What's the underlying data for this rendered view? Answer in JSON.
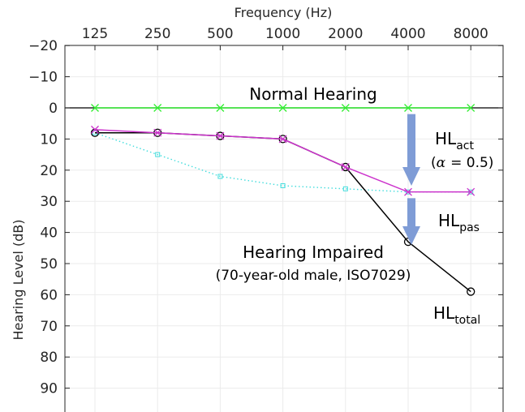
{
  "chart_data": {
    "type": "line",
    "xlabel": "Frequency (Hz)",
    "ylabel": "Hearing Level (dB)",
    "categories": [
      "125",
      "250",
      "500",
      "1000",
      "2000",
      "4000",
      "8000"
    ],
    "yticks": [
      "−20",
      "−10",
      "0",
      "10",
      "20",
      "30",
      "40",
      "50",
      "60",
      "70",
      "80",
      "90"
    ],
    "ytick_values": [
      -20,
      -10,
      0,
      10,
      20,
      30,
      40,
      50,
      60,
      70,
      80,
      90
    ],
    "ylim": [
      -20,
      96
    ],
    "y_reversed": true,
    "x_axis_position": "top",
    "series": [
      {
        "name": "Normal Hearing",
        "color": "#33ee33",
        "marker": "x",
        "style": "solid",
        "values": [
          0,
          0,
          0,
          0,
          0,
          0,
          0
        ]
      },
      {
        "name": "HL_pas",
        "color": "#44dddd",
        "marker": "square",
        "style": "dotted",
        "values": [
          8,
          15,
          22,
          25,
          26,
          27,
          27
        ]
      },
      {
        "name": "HL_total",
        "color": "#000000",
        "marker": "circle",
        "style": "solid",
        "values": [
          8,
          8,
          9,
          10,
          19,
          43,
          59
        ]
      },
      {
        "name": "HL_act",
        "color": "#cc33cc",
        "marker": "x",
        "style": "solid",
        "values": [
          7,
          8,
          9,
          10,
          19,
          27,
          27
        ]
      }
    ],
    "arrows": [
      {
        "name": "act",
        "x_category": "4000",
        "y_from": 2,
        "y_to": 25,
        "color": "#7f9cd6"
      },
      {
        "name": "pas",
        "x_category": "4000",
        "y_from": 29,
        "y_to": 44,
        "color": "#7f9cd6"
      }
    ],
    "annotations": {
      "normal": "Normal Hearing",
      "impaired_line1": "Hearing Impaired",
      "impaired_line2": "(70-year-old male, ISO7029)",
      "hl_base": "HL",
      "act_sub": "act",
      "alpha": "α",
      "alpha_eq": "= 0.5)",
      "paren_open": "(",
      "pas_sub": "pas",
      "total_sub": "total"
    }
  }
}
